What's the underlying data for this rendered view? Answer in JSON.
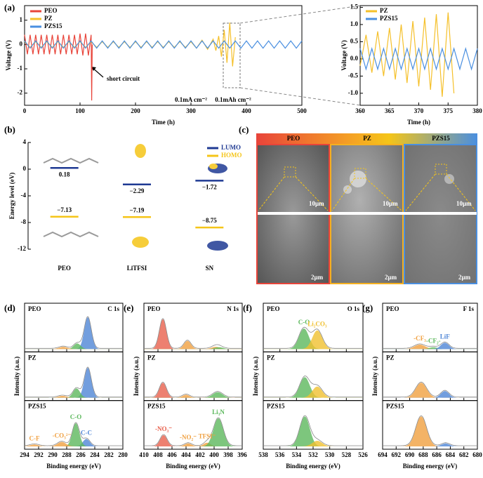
{
  "panel_labels": [
    "(a)",
    "(b)",
    "(c)",
    "(d)",
    "(e)",
    "(f)",
    "(g)"
  ],
  "chart_data": [
    {
      "type": "line",
      "xlabel": "Time (h)",
      "ylabel": "Voltage (V)",
      "xlim": [
        0,
        500
      ],
      "ylim": [
        -2.5,
        1.6
      ],
      "xticks": [
        0,
        100,
        200,
        300,
        400,
        500
      ],
      "yticks": [
        -2,
        -1,
        0,
        1
      ],
      "legend": "upper left",
      "annotations": [
        "short circuit",
        "0.1mA cm⁻²",
        "0.1mAh cm⁻²"
      ],
      "series": [
        {
          "name": "PEO",
          "color": "#e8443a",
          "x": [
            0,
            5,
            10,
            15,
            20,
            25,
            30,
            35,
            40,
            45,
            50,
            55,
            60,
            65,
            70,
            75,
            80,
            85,
            90,
            95,
            100,
            105,
            110,
            115,
            120,
            121,
            122
          ],
          "values": [
            0.4,
            -0.4,
            0.4,
            -0.4,
            0.4,
            -0.4,
            0.4,
            -0.4,
            0.4,
            -0.4,
            0.4,
            -0.4,
            0.4,
            -0.4,
            0.4,
            -0.4,
            0.4,
            -0.4,
            0.4,
            -0.4,
            0.45,
            -0.45,
            0.45,
            -0.45,
            0.4,
            -2.3,
            0
          ]
        },
        {
          "name": "PZ",
          "color": "#f5c02a",
          "x": [
            0,
            10,
            20,
            30,
            40,
            50,
            60,
            70,
            80,
            90,
            100,
            110,
            120,
            130,
            140,
            150,
            160,
            170,
            180,
            190,
            200,
            210,
            220,
            230,
            240,
            250,
            260,
            270,
            280,
            290,
            300,
            310,
            320,
            330,
            340,
            345,
            350,
            355,
            360,
            365,
            370,
            375,
            380
          ],
          "values": [
            0.12,
            -0.12,
            0.12,
            -0.12,
            0.12,
            -0.12,
            0.12,
            -0.12,
            0.12,
            -0.12,
            0.12,
            -0.12,
            0.12,
            -0.12,
            0.12,
            -0.12,
            0.12,
            -0.12,
            0.12,
            -0.12,
            0.12,
            -0.12,
            0.12,
            -0.12,
            0.12,
            -0.12,
            0.12,
            -0.12,
            0.12,
            -0.12,
            0.12,
            -0.15,
            0.18,
            -0.2,
            0.22,
            -0.25,
            0.35,
            -0.5,
            0.6,
            -0.75,
            0.9,
            -0.9,
            0.3
          ]
        },
        {
          "name": "PZS15",
          "color": "#4a8fe0",
          "x": [
            0,
            10,
            20,
            30,
            40,
            50,
            60,
            70,
            80,
            90,
            100,
            110,
            120,
            130,
            140,
            150,
            160,
            170,
            180,
            190,
            200,
            210,
            220,
            230,
            240,
            250,
            260,
            270,
            280,
            290,
            300,
            310,
            320,
            330,
            340,
            350,
            360,
            370,
            380,
            390,
            400,
            410,
            420,
            430,
            440,
            450,
            460,
            470,
            480,
            490,
            500
          ],
          "values": [
            0.15,
            -0.15,
            0.15,
            -0.15,
            0.15,
            -0.15,
            0.15,
            -0.15,
            0.15,
            -0.15,
            0.15,
            -0.15,
            0.15,
            -0.15,
            0.15,
            -0.15,
            0.15,
            -0.15,
            0.15,
            -0.15,
            0.15,
            -0.15,
            0.15,
            -0.15,
            0.15,
            -0.15,
            0.15,
            -0.15,
            0.15,
            -0.15,
            0.15,
            -0.15,
            0.15,
            -0.15,
            0.15,
            -0.15,
            0.15,
            -0.15,
            0.15,
            -0.15,
            0.15,
            -0.15,
            0.15,
            -0.15,
            0.15,
            -0.15,
            0.15,
            -0.15,
            0.15,
            -0.15,
            0.15
          ]
        }
      ]
    },
    {
      "type": "line",
      "xlabel": "Time (h)",
      "ylabel": "Voltage (V)",
      "xlim": [
        360,
        380
      ],
      "ylim": [
        -1.35,
        1.55
      ],
      "xticks": [
        360,
        365,
        370,
        375,
        380
      ],
      "yticks": [
        {
          "value": -1,
          "label": "-1.0"
        },
        -0.5,
        {
          "value": 0,
          "label": "0.0"
        },
        0.5,
        {
          "value": 1,
          "label": "1.0"
        },
        1.5
      ],
      "legend": "upper left",
      "series": [
        {
          "name": "PZ",
          "color": "#f5c02a",
          "x": [
            360,
            361,
            362,
            363,
            364,
            365,
            366,
            367,
            368,
            369,
            370,
            371,
            372,
            373,
            374,
            375,
            376
          ],
          "values": [
            -0.2,
            0.7,
            -0.4,
            0.8,
            -0.5,
            0.9,
            -0.6,
            1.0,
            -0.7,
            1.1,
            -0.8,
            1.2,
            -0.9,
            1.3,
            -1.1,
            1.35,
            -1.0
          ]
        },
        {
          "name": "PZS15",
          "color": "#4a8fe0",
          "x": [
            360,
            361,
            362,
            363,
            364,
            365,
            366,
            367,
            368,
            369,
            370,
            371,
            372,
            373,
            374,
            375,
            376,
            377,
            378,
            379,
            380
          ],
          "values": [
            0.3,
            -0.3,
            0.3,
            -0.3,
            0.3,
            -0.3,
            0.3,
            -0.3,
            0.3,
            -0.3,
            0.3,
            -0.3,
            0.3,
            -0.3,
            0.3,
            -0.3,
            0.3,
            -0.3,
            0.3,
            -0.3,
            0.3
          ]
        }
      ]
    },
    {
      "type": "energy",
      "ylabel": "Energy level (eV)",
      "categories": [
        "PEO",
        "LiTFSI",
        "SN"
      ],
      "ylim": [
        -12,
        4
      ],
      "yticks": [
        -12,
        -8,
        -4,
        0,
        4
      ],
      "legend": "upper right",
      "series": [
        {
          "name": "LUMO",
          "color": "#1f3a93",
          "values": [
            0.18,
            -2.29,
            -1.72
          ],
          "value_labels": [
            "0.18",
            "−2.29",
            "−1.72"
          ]
        },
        {
          "name": "HOMO",
          "color": "#f5c518",
          "values": [
            -7.13,
            -7.19,
            -8.75
          ],
          "value_labels": [
            "−7.13",
            "−7.19",
            "−8.75"
          ]
        }
      ]
    },
    {
      "type": "xps",
      "title": "C 1s",
      "xlabel": "Binding energy (eV)",
      "ylabel": "Intensity (a.u.)",
      "xlim": [
        294,
        280
      ],
      "xticks": [
        294,
        292,
        290,
        288,
        286,
        284,
        282,
        280
      ],
      "ylim": [
        0,
        1
      ],
      "subplots": [
        {
          "name": "PEO",
          "peaks": [
            {
              "center": 285,
              "height": 0.85,
              "width": 0.5,
              "color": "#4f86d6"
            },
            {
              "center": 286.5,
              "height": 0.15,
              "width": 0.5,
              "color": "#5cb85c"
            },
            {
              "center": 288.5,
              "height": 0.06,
              "width": 0.6,
              "color": "#f0a040"
            }
          ]
        },
        {
          "name": "PZ",
          "peaks": [
            {
              "center": 285,
              "height": 0.8,
              "width": 0.5,
              "color": "#4f86d6"
            },
            {
              "center": 286.6,
              "height": 0.25,
              "width": 0.5,
              "color": "#5cb85c"
            },
            {
              "center": 288.6,
              "height": 0.05,
              "width": 0.6,
              "color": "#f0a040"
            }
          ]
        },
        {
          "name": "PZS15",
          "peaks": [
            {
              "center": 285.2,
              "height": 0.2,
              "width": 0.5,
              "color": "#4f86d6",
              "label": "C-C"
            },
            {
              "center": 286.7,
              "height": 0.62,
              "width": 0.5,
              "color": "#5cb85c",
              "label": "C-O"
            },
            {
              "center": 288.7,
              "height": 0.12,
              "width": 0.6,
              "color": "#f0a040",
              "label": "-CO₃²⁻"
            },
            {
              "center": 292.6,
              "height": 0.05,
              "width": 0.6,
              "color": "#f0a040",
              "label": "C-F"
            }
          ]
        }
      ]
    },
    {
      "type": "xps",
      "title": "N 1s",
      "xlabel": "Binding energy (eV)",
      "ylabel": "Intensity (a.u.)",
      "xlim": [
        410,
        396
      ],
      "xticks": [
        410,
        408,
        406,
        404,
        402,
        400,
        398,
        396
      ],
      "ylim": [
        0,
        1
      ],
      "subplots": [
        {
          "name": "PEO",
          "peaks": [
            {
              "center": 407.3,
              "height": 0.8,
              "width": 0.5,
              "color": "#e8604c"
            },
            {
              "center": 403.8,
              "height": 0.22,
              "width": 0.5,
              "color": "#f0a040"
            },
            {
              "center": 399.8,
              "height": 0.06,
              "width": 0.6,
              "color": "#f0a040"
            },
            {
              "center": 399.3,
              "height": 0.05,
              "width": 0.6,
              "color": "#5cb85c"
            }
          ]
        },
        {
          "name": "PZ",
          "peaks": [
            {
              "center": 407.3,
              "height": 0.4,
              "width": 0.5,
              "color": "#e8604c"
            },
            {
              "center": 404,
              "height": 0.08,
              "width": 0.5,
              "color": "#f0a040"
            },
            {
              "center": 399.5,
              "height": 0.15,
              "width": 0.7,
              "color": "#5cb85c"
            }
          ]
        },
        {
          "name": "PZS15",
          "peaks": [
            {
              "center": 407.2,
              "height": 0.3,
              "width": 0.5,
              "color": "#e8604c",
              "label": "-NO₃⁻"
            },
            {
              "center": 403.7,
              "height": 0.08,
              "width": 0.5,
              "color": "#f0a040",
              "label": "-NO₂⁻"
            },
            {
              "center": 401,
              "height": 0.1,
              "width": 0.5,
              "color": "#f0a040",
              "label": "TFSI⁻"
            },
            {
              "center": 399.4,
              "height": 0.75,
              "width": 0.7,
              "color": "#5cb85c",
              "label": "Li₃N"
            }
          ]
        }
      ]
    },
    {
      "type": "xps",
      "title": "O 1s",
      "xlabel": "Binding energy (eV)",
      "ylabel": "Intensity (a.u.)",
      "xlim": [
        538,
        526
      ],
      "xticks": [
        538,
        536,
        534,
        532,
        530,
        528,
        526
      ],
      "ylim": [
        0,
        1
      ],
      "subplots": [
        {
          "name": "PEO",
          "peaks": [
            {
              "center": 533.1,
              "height": 0.55,
              "width": 0.6,
              "color": "#5cb85c",
              "label": "C-O"
            },
            {
              "center": 531.5,
              "height": 0.5,
              "width": 0.6,
              "color": "#f0c030",
              "label": "Li₂CO₃"
            }
          ]
        },
        {
          "name": "PZ",
          "peaks": [
            {
              "center": 533,
              "height": 0.55,
              "width": 0.6,
              "color": "#5cb85c"
            },
            {
              "center": 531.5,
              "height": 0.3,
              "width": 0.6,
              "color": "#f0c030"
            }
          ]
        },
        {
          "name": "PZS15",
          "peaks": [
            {
              "center": 533,
              "height": 0.8,
              "width": 0.6,
              "color": "#5cb85c"
            },
            {
              "center": 531.5,
              "height": 0.15,
              "width": 0.6,
              "color": "#f0c030"
            }
          ]
        }
      ]
    },
    {
      "type": "xps",
      "title": "F 1s",
      "xlabel": "Binding energy (eV)",
      "ylabel": "Intensity (a.u.)",
      "xlim": [
        694,
        680
      ],
      "xticks": [
        694,
        692,
        690,
        688,
        686,
        684,
        682,
        680
      ],
      "ylim": [
        0,
        1
      ],
      "subplots": [
        {
          "name": "PEO",
          "peaks": [
            {
              "center": 688.5,
              "height": 0.12,
              "width": 0.8,
              "color": "#f0a040",
              "label": "-CF₃"
            },
            {
              "center": 686.5,
              "height": 0.05,
              "width": 0.6,
              "color": "#5cb85c",
              "label": "-CF₂-"
            },
            {
              "center": 684.8,
              "height": 0.17,
              "width": 0.6,
              "color": "#4f86d6",
              "label": "LiF"
            }
          ]
        },
        {
          "name": "PZ",
          "peaks": [
            {
              "center": 688.3,
              "height": 0.4,
              "width": 0.8,
              "color": "#f0a040"
            },
            {
              "center": 684.8,
              "height": 0.18,
              "width": 0.6,
              "color": "#4f86d6"
            }
          ]
        },
        {
          "name": "PZS15",
          "peaks": [
            {
              "center": 688.3,
              "height": 0.8,
              "width": 0.8,
              "color": "#f0a040"
            },
            {
              "center": 684.7,
              "height": 0.08,
              "width": 0.6,
              "color": "#4f86d6"
            }
          ]
        }
      ]
    }
  ],
  "sem": {
    "labels": [
      "PEO",
      "PZ",
      "PZS15"
    ],
    "scale_top": "10μm",
    "scale_bottom": "2μm"
  }
}
